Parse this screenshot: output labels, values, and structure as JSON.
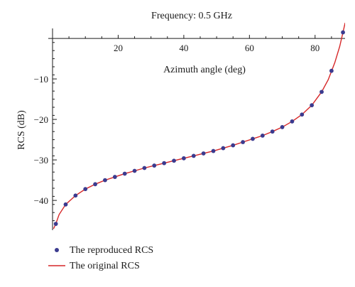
{
  "chart_data": {
    "type": "scatter",
    "title": "Frequency: 0.5 GHz",
    "xlabel": "Azimuth angle (deg)",
    "ylabel": "RCS (dB)",
    "xlim": [
      0,
      90
    ],
    "ylim": [
      -47,
      3
    ],
    "x_ticks": [
      20,
      40,
      60,
      80
    ],
    "y_ticks": [
      -10,
      -20,
      -30,
      -40
    ],
    "grid": false,
    "legend_position": "bottom-left",
    "series": [
      {
        "name": "The reproduced RCS",
        "marker": "point",
        "color": "#3b3b8f",
        "x": [
          1,
          4,
          7,
          10,
          13,
          16,
          19,
          22,
          25,
          28,
          31,
          34,
          37,
          40,
          43,
          46,
          49,
          52,
          55,
          58,
          61,
          64,
          67,
          70,
          73,
          76,
          79,
          82,
          85,
          88.5
        ],
        "y": [
          -45.8,
          -41.0,
          -38.8,
          -37.2,
          -36.0,
          -35.0,
          -34.2,
          -33.4,
          -32.7,
          -32.0,
          -31.4,
          -30.8,
          -30.2,
          -29.6,
          -29.0,
          -28.4,
          -27.8,
          -27.1,
          -26.4,
          -25.6,
          -24.8,
          -24.0,
          -23.0,
          -21.9,
          -20.5,
          -18.8,
          -16.5,
          -13.2,
          -8.0,
          1.5
        ]
      },
      {
        "name": "The original RCS",
        "marker": "line",
        "color": "#d62728",
        "x": [
          0.3,
          1,
          2,
          4,
          7,
          10,
          13,
          16,
          19,
          22,
          25,
          28,
          31,
          34,
          37,
          40,
          43,
          46,
          49,
          52,
          55,
          58,
          61,
          64,
          67,
          70,
          73,
          76,
          79,
          82,
          84,
          86,
          87.5,
          88.5,
          89.2
        ],
        "y": [
          -47.0,
          -45.8,
          -43.5,
          -41.0,
          -38.8,
          -37.2,
          -36.0,
          -35.0,
          -34.2,
          -33.4,
          -32.7,
          -32.0,
          -31.4,
          -30.8,
          -30.2,
          -29.6,
          -29.0,
          -28.4,
          -27.8,
          -27.1,
          -26.4,
          -25.6,
          -24.8,
          -24.0,
          -23.0,
          -21.9,
          -20.5,
          -18.8,
          -16.5,
          -13.2,
          -10.2,
          -6.0,
          -2.0,
          1.5,
          4.0
        ]
      }
    ]
  }
}
